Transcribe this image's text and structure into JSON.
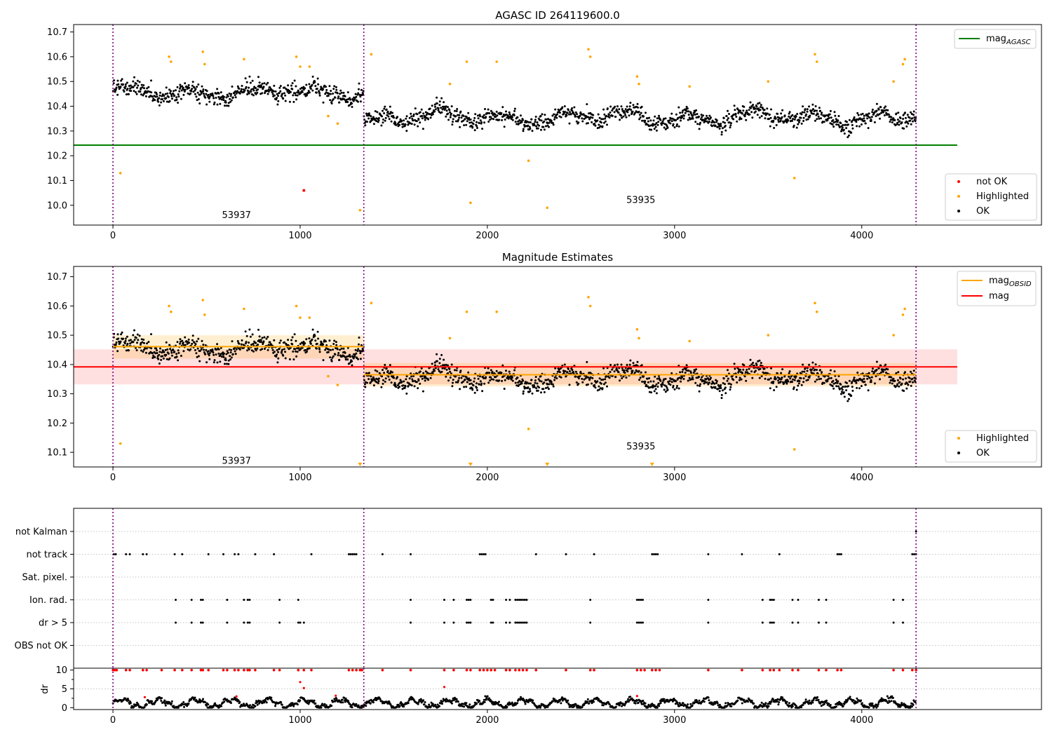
{
  "chart_data": [
    {
      "type": "scatter",
      "title": "AGASC ID 264119600.0",
      "xlim": [
        -210,
        4960
      ],
      "ylim": [
        9.92,
        10.73
      ],
      "xticks": [
        0,
        1000,
        2000,
        3000,
        4000
      ],
      "yticks": [
        10.0,
        10.1,
        10.2,
        10.3,
        10.4,
        10.5,
        10.6,
        10.7
      ],
      "obs_boundaries": [
        0,
        1340,
        4290
      ],
      "obs_labels": [
        {
          "text": "53937",
          "x": 660,
          "y": 9.96
        },
        {
          "text": "53935",
          "x": 2820,
          "y": 10.02
        }
      ],
      "hlines": [
        {
          "name": "mag_AGASC",
          "value": 10.243,
          "x": [
            -210,
            4510
          ],
          "color": "#008000"
        }
      ],
      "segments": [
        {
          "x0": 0,
          "x1": 1340,
          "base": 10.455,
          "amp": 0.03
        },
        {
          "x0": 1340,
          "x1": 4290,
          "base": 10.355,
          "amp": 0.04
        }
      ],
      "series": [
        {
          "name": "not OK",
          "color": "#ff0000",
          "x": [
            1020
          ],
          "y": [
            10.06
          ]
        },
        {
          "name": "Highlighted",
          "color": "#ffa500",
          "x": [
            40,
            300,
            310,
            480,
            490,
            700,
            980,
            1000,
            1050,
            1150,
            1200,
            1320,
            1380,
            1800,
            1890,
            1910,
            2050,
            2220,
            2320,
            2540,
            2550,
            2800,
            2810,
            3080,
            3500,
            3640,
            3750,
            3760,
            4170,
            4220,
            4230
          ],
          "y": [
            10.13,
            10.6,
            10.58,
            10.62,
            10.57,
            10.59,
            10.6,
            10.56,
            10.56,
            10.36,
            10.33,
            9.98,
            10.61,
            10.49,
            10.58,
            10.01,
            10.58,
            10.18,
            9.99,
            10.63,
            10.6,
            10.52,
            10.49,
            10.48,
            10.5,
            10.11,
            10.61,
            10.58,
            10.5,
            10.57,
            10.59
          ]
        },
        {
          "name": "OK",
          "color": "#000000",
          "generated_from": "segments",
          "n": 1700
        }
      ],
      "legend": [
        {
          "label": "mag",
          "subscript": "AGASC",
          "kind": "line",
          "color": "#008000",
          "position": "upper-right"
        },
        {
          "label": "not OK",
          "kind": "marker",
          "color": "#ff0000",
          "position": "lower-right"
        },
        {
          "label": "Highlighted",
          "kind": "marker",
          "color": "#ffa500",
          "position": "lower-right"
        },
        {
          "label": "OK",
          "kind": "marker",
          "color": "#000000",
          "position": "lower-right"
        }
      ]
    },
    {
      "type": "scatter",
      "title": "Magnitude Estimates",
      "xlim": [
        -210,
        4960
      ],
      "ylim": [
        10.05,
        10.735
      ],
      "xticks": [
        0,
        1000,
        2000,
        3000,
        4000
      ],
      "yticks": [
        10.1,
        10.2,
        10.3,
        10.4,
        10.5,
        10.6,
        10.7
      ],
      "obs_boundaries": [
        0,
        1340,
        4290
      ],
      "obs_labels": [
        {
          "text": "53937",
          "x": 660,
          "y": 10.07
        },
        {
          "text": "53935",
          "x": 2820,
          "y": 10.12
        }
      ],
      "bands": [
        {
          "x": [
            -210,
            4510
          ],
          "y": [
            10.332,
            10.452
          ],
          "color": "#ff0000",
          "opacity": 0.12
        },
        {
          "x": [
            0,
            1340
          ],
          "y": [
            10.42,
            10.5
          ],
          "color": "#ffa500",
          "opacity": 0.18
        },
        {
          "x": [
            1340,
            4290
          ],
          "y": [
            10.325,
            10.405
          ],
          "color": "#ffa500",
          "opacity": 0.18
        }
      ],
      "hlines": [
        {
          "name": "mag",
          "value": 10.392,
          "x": [
            -210,
            4510
          ],
          "color": "#ff0000"
        },
        {
          "name": "mag_OBSID",
          "value": 10.461,
          "x": [
            0,
            1340
          ],
          "color": "#ffa500"
        },
        {
          "name": "mag_OBSID",
          "value": 10.365,
          "x": [
            1340,
            4290
          ],
          "color": "#ffa500"
        }
      ],
      "segments": [
        {
          "x0": 0,
          "x1": 1340,
          "base": 10.455,
          "amp": 0.03
        },
        {
          "x0": 1340,
          "x1": 4290,
          "base": 10.355,
          "amp": 0.04
        }
      ],
      "series": [
        {
          "name": "Highlighted",
          "color": "#ffa500",
          "x": [
            40,
            300,
            310,
            480,
            490,
            700,
            980,
            1000,
            1050,
            1150,
            1200,
            1380,
            1800,
            1890,
            2050,
            2220,
            2540,
            2550,
            2800,
            2810,
            3080,
            3500,
            3640,
            3750,
            3760,
            4170,
            4220,
            4230
          ],
          "y": [
            10.13,
            10.6,
            10.58,
            10.62,
            10.57,
            10.59,
            10.6,
            10.56,
            10.56,
            10.36,
            10.33,
            10.61,
            10.49,
            10.58,
            10.58,
            10.18,
            10.63,
            10.6,
            10.52,
            10.49,
            10.48,
            10.5,
            10.11,
            10.61,
            10.58,
            10.5,
            10.57,
            10.59
          ]
        },
        {
          "name": "Highlighted (off-scale below)",
          "color": "#ffa500",
          "marker": "triangle-down",
          "x": [
            1320,
            1910,
            2320,
            2880
          ],
          "y": [
            10.055,
            10.055,
            10.055,
            10.055
          ]
        },
        {
          "name": "OK",
          "color": "#000000",
          "generated_from": "segments",
          "n": 1700
        }
      ],
      "legend": [
        {
          "label": "mag",
          "subscript": "OBSID",
          "kind": "line",
          "color": "#ffa500",
          "position": "upper-right"
        },
        {
          "label": "mag",
          "kind": "line",
          "color": "#ff0000",
          "position": "upper-right"
        },
        {
          "label": "Highlighted",
          "kind": "marker",
          "color": "#ffa500",
          "position": "lower-right"
        },
        {
          "label": "OK",
          "kind": "marker",
          "color": "#000000",
          "position": "lower-right"
        }
      ]
    },
    {
      "type": "scatter",
      "title": "",
      "xlim": [
        -210,
        4960
      ],
      "xticks": [
        0,
        1000,
        2000,
        3000,
        4000
      ],
      "obs_boundaries": [
        0,
        1340,
        4290
      ],
      "categories": [
        "not Kalman",
        "not track",
        "Sat. pixel.",
        "Ion. rad.",
        "dr > 5",
        "OBS not OK"
      ],
      "flags": {
        "not Kalman": [
          4290
        ],
        "not track": [
          5,
          15,
          70,
          90,
          160,
          180,
          330,
          370,
          510,
          590,
          650,
          670,
          760,
          860,
          1060,
          1260,
          1270,
          1280,
          1290,
          1300,
          1440,
          1590,
          1960,
          1970,
          1980,
          1990,
          2260,
          2420,
          2570,
          2880,
          2890,
          2900,
          2910,
          3180,
          3360,
          3560,
          3870,
          3880,
          3890,
          4270,
          4280,
          4290
        ],
        "Sat. pixel.": [],
        "Ion. rad.": [
          335,
          420,
          470,
          480,
          610,
          700,
          720,
          730,
          890,
          990,
          1590,
          1770,
          1820,
          1890,
          1900,
          1910,
          2020,
          2030,
          2100,
          2120,
          2150,
          2160,
          2170,
          2180,
          2190,
          2200,
          2210,
          2550,
          2800,
          2810,
          2820,
          2830,
          3180,
          3470,
          3510,
          3520,
          3530,
          3630,
          3660,
          3770,
          3810,
          4170,
          4220
        ],
        "dr > 5": [
          335,
          420,
          470,
          480,
          610,
          700,
          720,
          730,
          890,
          990,
          1000,
          1020,
          1590,
          1770,
          1820,
          1890,
          1900,
          1910,
          2020,
          2030,
          2100,
          2120,
          2150,
          2160,
          2170,
          2180,
          2190,
          2200,
          2210,
          2550,
          2800,
          2810,
          2820,
          2830,
          3180,
          3470,
          3510,
          3520,
          3530,
          3630,
          3660,
          3770,
          3810,
          4170,
          4220
        ],
        "OBS not OK": []
      }
    },
    {
      "type": "scatter",
      "title": "",
      "ylabel": "dr",
      "xlim": [
        -210,
        4960
      ],
      "ylim": [
        -0.5,
        10.5
      ],
      "xticks": [
        0,
        1000,
        2000,
        3000,
        4000
      ],
      "yticks": [
        0,
        5,
        10
      ],
      "obs_boundaries": [
        0,
        1340,
        4290
      ],
      "series": [
        {
          "name": "dr (flagged)",
          "color": "#ff0000",
          "x": [
            0,
            10,
            20,
            70,
            90,
            160,
            180,
            260,
            330,
            370,
            420,
            470,
            480,
            510,
            590,
            610,
            650,
            670,
            700,
            720,
            730,
            760,
            860,
            890,
            990,
            1020,
            1060,
            1260,
            1280,
            1300,
            1320,
            1330,
            1440,
            1590,
            1770,
            1820,
            1890,
            1910,
            1960,
            1980,
            2000,
            2020,
            2040,
            2100,
            2120,
            2150,
            2170,
            2190,
            2210,
            2260,
            2420,
            2550,
            2570,
            2800,
            2820,
            2840,
            2880,
            2900,
            2920,
            3180,
            3360,
            3470,
            3510,
            3530,
            3560,
            3630,
            3660,
            3770,
            3810,
            3870,
            3890,
            4170,
            4220,
            4270,
            4290
          ],
          "y": [
            10,
            10,
            10,
            10,
            10,
            10,
            10,
            10,
            10,
            10,
            10,
            10,
            10,
            10,
            10,
            10,
            10,
            10,
            10,
            10,
            10,
            10,
            10,
            10,
            10,
            10,
            10,
            10,
            10,
            10,
            10,
            10,
            10,
            10,
            10,
            10,
            10,
            10,
            10,
            10,
            10,
            10,
            10,
            10,
            10,
            10,
            10,
            10,
            10,
            10,
            10,
            10,
            10,
            10,
            10,
            10,
            10,
            10,
            10,
            10,
            10,
            10,
            10,
            10,
            10,
            10,
            10,
            10,
            10,
            10,
            10,
            10,
            10,
            10,
            10
          ]
        },
        {
          "name": "dr (flagged, lower)",
          "color": "#ff0000",
          "x": [
            1000,
            1020,
            1770,
            1190,
            660,
            170,
            2800
          ],
          "y": [
            6.8,
            5.2,
            5.5,
            3.2,
            3.0,
            2.8,
            3.1
          ]
        },
        {
          "name": "dr",
          "color": "#000000",
          "generated_from": "segments",
          "n": 1400
        }
      ]
    }
  ]
}
